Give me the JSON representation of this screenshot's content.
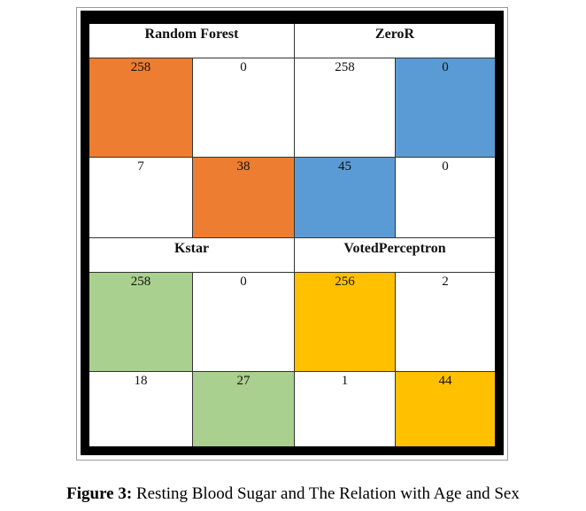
{
  "caption": {
    "label": "Figure 3:",
    "text": " Resting Blood Sugar and The Relation with Age and Sex"
  },
  "colors": {
    "random_forest": "#ED7D31",
    "zeror": "#5B9BD5",
    "kstar": "#A9D08E",
    "voted_perceptron": "#FFC000",
    "frame": "#000000"
  },
  "matrices": [
    {
      "name": "Random Forest",
      "cells": [
        "258",
        "0",
        "7",
        "38"
      ],
      "color_key": "random_forest"
    },
    {
      "name": "ZeroR",
      "cells": [
        "258",
        "0",
        "45",
        "0"
      ],
      "color_key": "zeror"
    },
    {
      "name": "Kstar",
      "cells": [
        "258",
        "0",
        "18",
        "27"
      ],
      "color_key": "kstar"
    },
    {
      "name": "VotedPerceptron",
      "cells": [
        "256",
        "2",
        "1",
        "44"
      ],
      "color_key": "voted_perceptron"
    }
  ]
}
